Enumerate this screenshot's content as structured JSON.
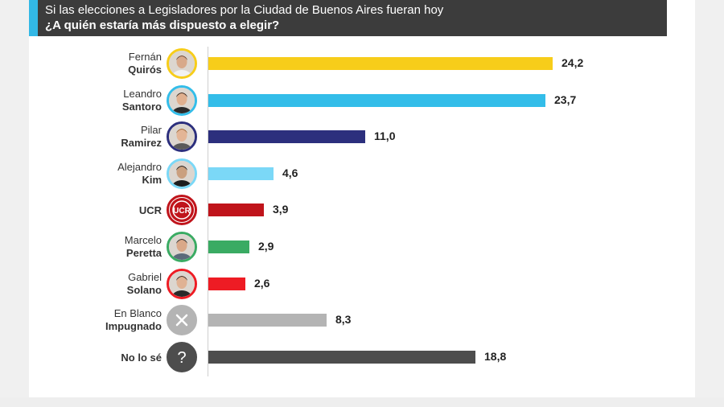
{
  "header": {
    "line1": "Si las elecciones a Legisladores por la Ciudad de Buenos Aires fueran hoy",
    "line2": "¿A quién estaría más dispuesto a elegir?"
  },
  "colors": {
    "header_bg": "#3c3c3c",
    "accent": "#32b8e6"
  },
  "chart_data": {
    "type": "bar",
    "orientation": "horizontal",
    "title": "¿A quién estaría más dispuesto a elegir?",
    "categories": [
      "Fernán Quirós",
      "Leandro Santoro",
      "Pilar Ramirez",
      "Alejandro Kim",
      "UCR",
      "Marcelo Peretta",
      "Gabriel Solano",
      "En Blanco Impugnado",
      "No lo sé"
    ],
    "values": [
      24.2,
      23.7,
      11.0,
      4.6,
      3.9,
      2.9,
      2.6,
      8.3,
      18.8
    ],
    "value_labels": [
      "24,2",
      "23,7",
      "11,0",
      "4,6",
      "3,9",
      "2,9",
      "2,6",
      "8,3",
      "18,8"
    ],
    "xlim": [
      0,
      24.2
    ],
    "grid": false,
    "legend": "none",
    "rows": [
      {
        "line1": "Fernán",
        "line2": "Quirós",
        "value": 24.2,
        "label": "24,2",
        "color": "#f7cd1a",
        "icon": "person-photo-icon",
        "ring": "#f7cd1a"
      },
      {
        "line1": "Leandro",
        "line2": "Santoro",
        "value": 23.7,
        "label": "23,7",
        "color": "#33bde9",
        "icon": "person-photo-icon",
        "ring": "#33bde9"
      },
      {
        "line1": "Pilar",
        "line2": "Ramirez",
        "value": 11.0,
        "label": "11,0",
        "color": "#2c2f7d",
        "icon": "person-photo-icon",
        "ring": "#2c2f7d"
      },
      {
        "line1": "Alejandro",
        "line2": "Kim",
        "value": 4.6,
        "label": "4,6",
        "color": "#7bd8f7",
        "icon": "person-photo-icon",
        "ring": "#7bd8f7"
      },
      {
        "line1": "",
        "line2": "UCR",
        "value": 3.9,
        "label": "3,9",
        "color": "#c0141b",
        "icon": "ucr-logo-icon",
        "ring": "#c0141b"
      },
      {
        "line1": "Marcelo",
        "line2": "Peretta",
        "value": 2.9,
        "label": "2,9",
        "color": "#3aab63",
        "icon": "person-photo-icon",
        "ring": "#3aab63"
      },
      {
        "line1": "Gabriel",
        "line2": "Solano",
        "value": 2.6,
        "label": "2,6",
        "color": "#ee1c24",
        "icon": "person-photo-icon",
        "ring": "#ee1c24"
      },
      {
        "line1": "En Blanco",
        "line2": "Impugnado",
        "value": 8.3,
        "label": "8,3",
        "color": "#b4b4b4",
        "icon": "x-mark-icon",
        "ring": "#b4b4b4"
      },
      {
        "line1": "",
        "line2": "No lo sé",
        "value": 18.8,
        "label": "18,8",
        "color": "#4d4d4d",
        "icon": "question-mark-icon",
        "ring": "#4d4d4d"
      }
    ],
    "logo_text": "UCR"
  }
}
